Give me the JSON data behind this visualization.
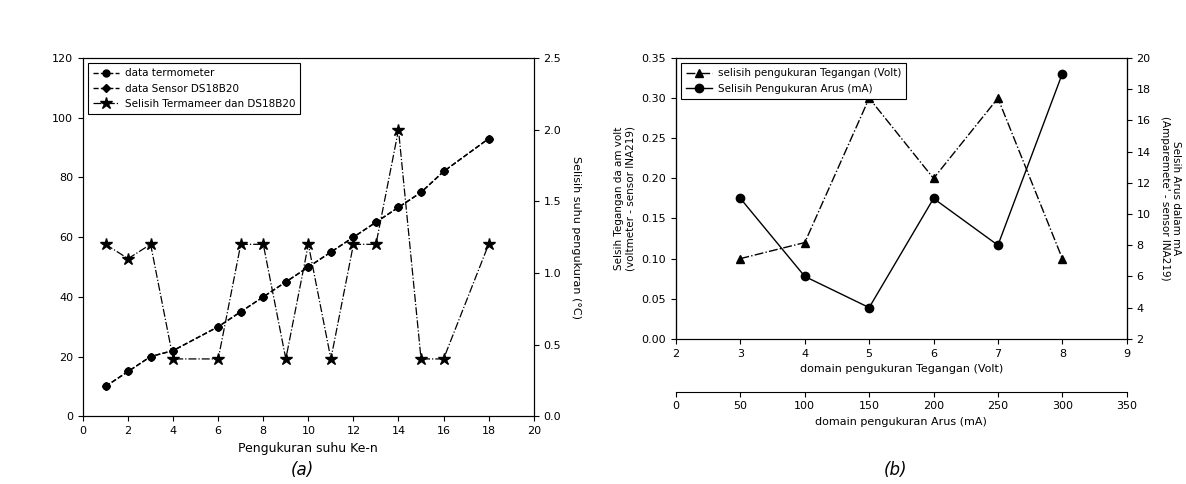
{
  "panel_a": {
    "x_thermo": [
      1,
      2,
      3,
      4,
      6,
      7,
      8,
      9,
      10,
      11,
      12,
      13,
      14,
      15,
      16,
      18
    ],
    "y_thermo": [
      10,
      15,
      20,
      22,
      30,
      35,
      40,
      45,
      50,
      55,
      60,
      65,
      70,
      75,
      82,
      93
    ],
    "x_sensor": [
      1,
      2,
      3,
      4,
      6,
      7,
      8,
      9,
      10,
      11,
      12,
      13,
      14,
      15,
      16,
      18
    ],
    "y_sensor": [
      10,
      15,
      20,
      22,
      30,
      35,
      40,
      45,
      50,
      55,
      60,
      65,
      70,
      75,
      82,
      93
    ],
    "x_selisih": [
      1,
      2,
      3,
      4,
      6,
      7,
      8,
      9,
      10,
      11,
      12,
      13,
      14,
      15,
      16,
      18
    ],
    "y_selisih": [
      1.2,
      1.1,
      1.2,
      0.4,
      0.4,
      1.2,
      1.2,
      0.4,
      1.2,
      0.4,
      1.2,
      1.2,
      2.0,
      0.4,
      0.4,
      1.2
    ],
    "xlabel": "Pengukuran suhu Ke-n",
    "ylabel_right": "Selisih suhu pengukuran (°C)",
    "xlim": [
      0,
      20
    ],
    "ylim_left": [
      0,
      120
    ],
    "ylim_right": [
      0.0,
      2.5
    ],
    "xticks": [
      0,
      2,
      4,
      6,
      8,
      10,
      12,
      14,
      16,
      18,
      20
    ],
    "yticks_left": [
      0,
      20,
      40,
      60,
      80,
      100,
      120
    ],
    "yticks_right": [
      0.0,
      0.5,
      1.0,
      1.5,
      2.0,
      2.5
    ],
    "legend_labels": [
      "data termometer",
      "data Sensor DS18B20",
      "Selisih Termameer dan DS18B20"
    ],
    "label_a": "(a)"
  },
  "panel_b": {
    "x_voltage": [
      3,
      4,
      5,
      6,
      7,
      8
    ],
    "y_voltage": [
      0.1,
      0.12,
      0.3,
      0.2,
      0.3,
      0.1
    ],
    "x_current": [
      3,
      4,
      5,
      6,
      7,
      8
    ],
    "y_current": [
      11,
      6,
      4,
      11,
      8,
      19
    ],
    "xlabel_top": "domain pengukuran Tegangan (Volt)",
    "xlabel_bot": "domain pengukuran Arus (mA)",
    "ylabel_left": "Selsih Tegangan da am volt\n(voltmeter - sensor INA219)",
    "ylabel_right": "Selsih Arus dalam mA\n(Amparemete' - sensor INA219)",
    "xlim_volt": [
      2,
      9
    ],
    "ylim_left": [
      0.0,
      0.35
    ],
    "ylim_right": [
      2,
      20
    ],
    "xticks_volt": [
      2,
      3,
      4,
      5,
      6,
      7,
      8,
      9
    ],
    "xticks_current_labels": [
      0,
      50,
      100,
      150,
      200,
      250,
      300,
      350
    ],
    "yticks_left": [
      0.0,
      0.05,
      0.1,
      0.15,
      0.2,
      0.25,
      0.3,
      0.35
    ],
    "yticks_right": [
      2,
      4,
      6,
      8,
      10,
      12,
      14,
      16,
      18,
      20
    ],
    "legend_labels": [
      "selisih pengukuran Tegangan (Volt)",
      "Selisih Pengukuran Arus (mA)"
    ],
    "label_b": "(b)"
  },
  "figure_bg": "#ffffff"
}
